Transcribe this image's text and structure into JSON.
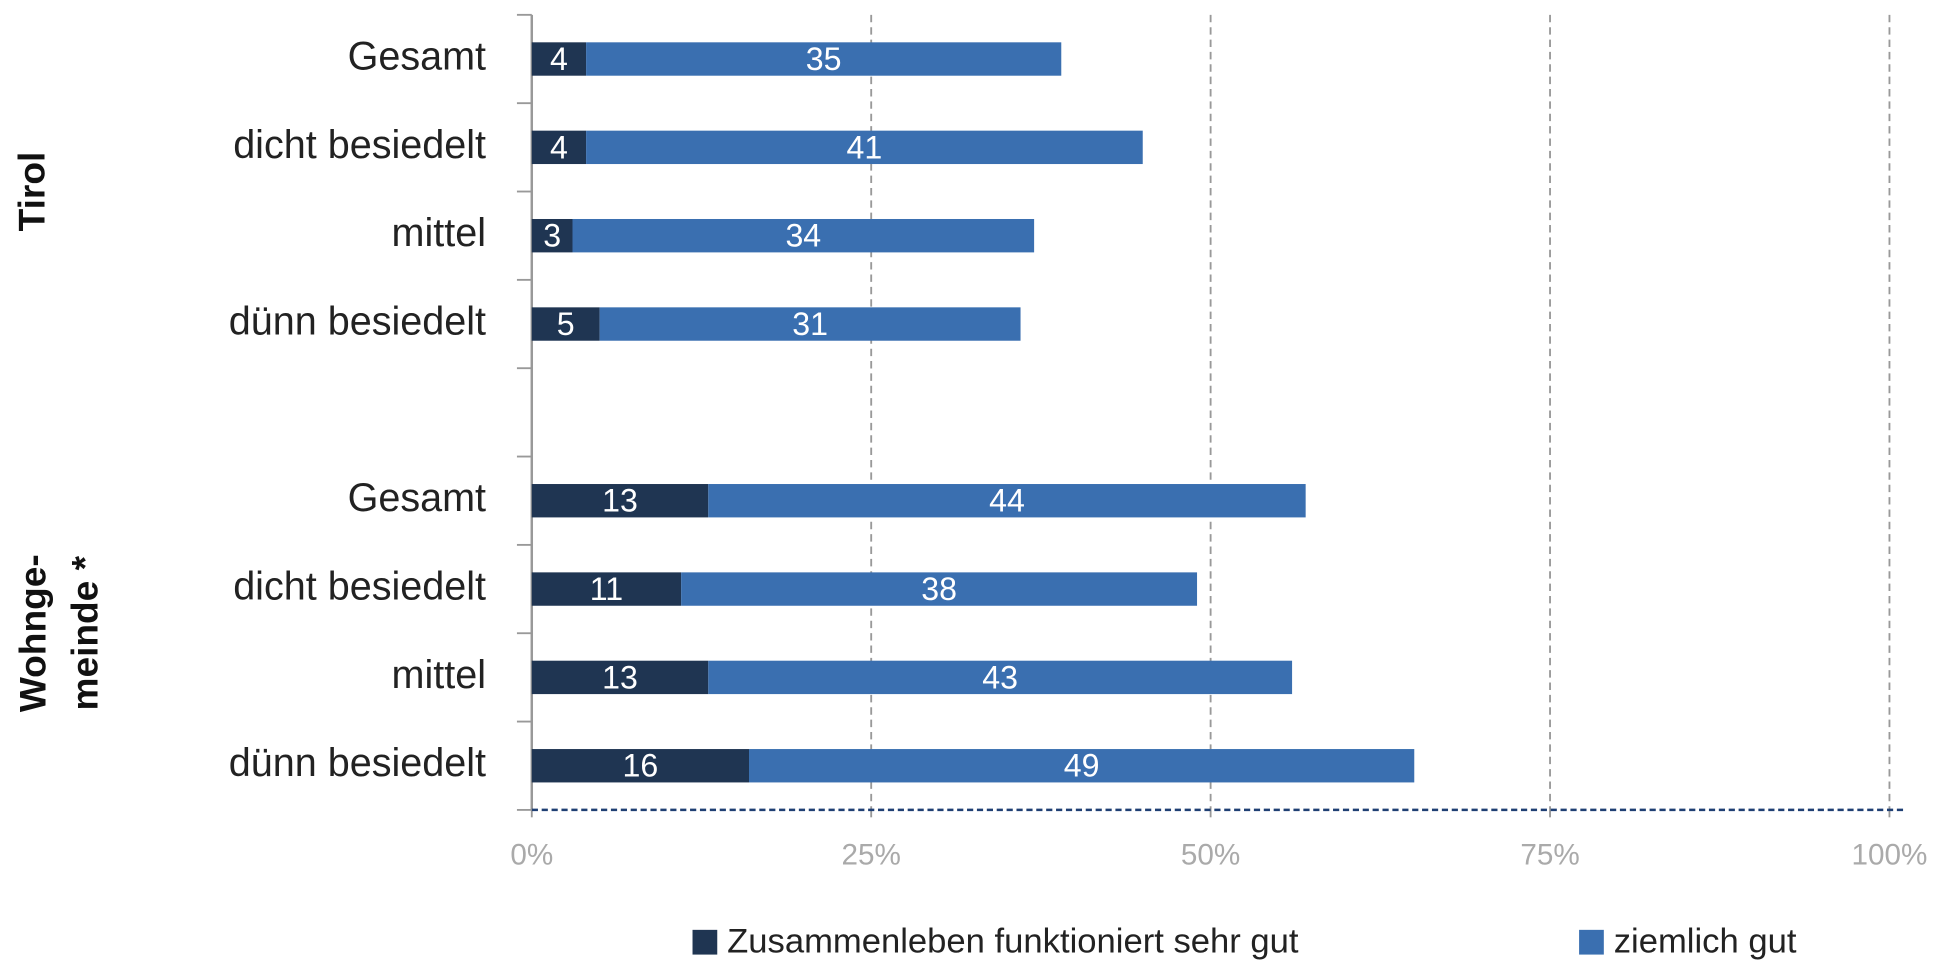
{
  "chart_data": {
    "type": "stacked-barh",
    "categories": [
      "Gesamt",
      "dicht besiedelt",
      "mittel",
      "dünn besiedelt",
      null,
      "Gesamt",
      "dicht besiedelt",
      "mittel",
      "dünn besiedelt"
    ],
    "groups": [
      {
        "lines": [
          "Tirol"
        ],
        "rows": [
          0,
          3
        ]
      },
      {
        "lines": [
          "Wohnge-",
          "meinde *"
        ],
        "rows": [
          5,
          8
        ]
      }
    ],
    "series": [
      {
        "name": "Zusammenleben funktioniert sehr gut",
        "color": "#1f3552",
        "values": [
          4,
          4,
          3,
          5,
          null,
          13,
          11,
          13,
          16
        ]
      },
      {
        "name": "ziemlich gut",
        "color": "#3a6fb0",
        "values": [
          35,
          41,
          34,
          31,
          null,
          44,
          38,
          43,
          49
        ]
      }
    ],
    "xlim": [
      0,
      100
    ],
    "xticks": [
      {
        "value": 0,
        "label": "0%"
      },
      {
        "value": 25,
        "label": "25%"
      },
      {
        "value": 50,
        "label": "50%"
      },
      {
        "value": 75,
        "label": "75%"
      },
      {
        "value": 100,
        "label": "100%"
      }
    ],
    "grid": true,
    "legend": "bottom"
  }
}
